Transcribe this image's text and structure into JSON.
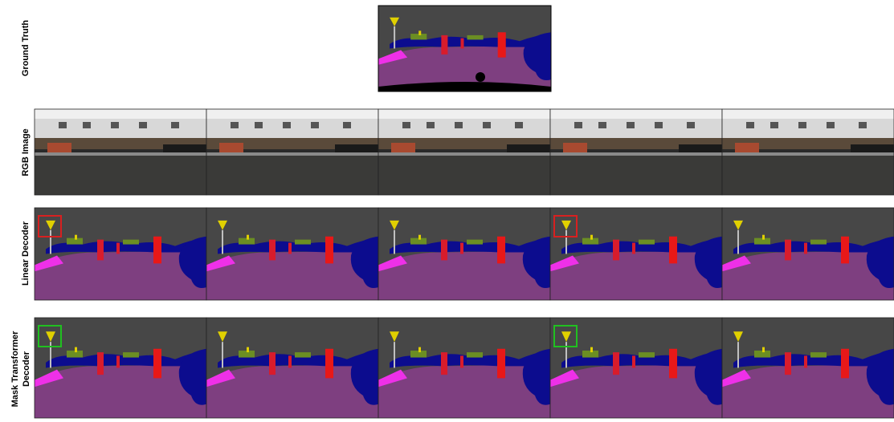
{
  "row_labels": {
    "ground_truth": "Ground Truth",
    "rgb_image": "RGB Image",
    "linear_decoder": "Linear Decoder",
    "mask_transformer_decoder": [
      "Mask Transformer",
      "Decoder"
    ]
  }
}
